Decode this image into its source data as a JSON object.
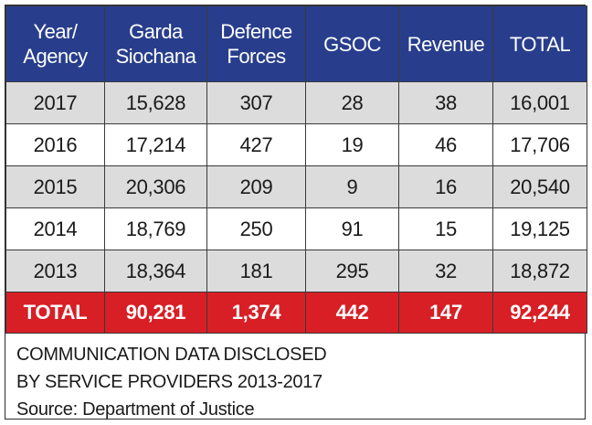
{
  "table": {
    "headers": [
      {
        "line1": "Year/",
        "line2": "Agency"
      },
      {
        "line1": "Garda",
        "line2": "Siochana"
      },
      {
        "line1": "Defence",
        "line2": "Forces"
      },
      {
        "line1": "GSOC",
        "line2": ""
      },
      {
        "line1": "Revenue",
        "line2": ""
      },
      {
        "line1": "TOTAL",
        "line2": ""
      }
    ],
    "rows": [
      [
        "2017",
        "15,628",
        "307",
        "28",
        "38",
        "16,001"
      ],
      [
        "2016",
        "17,214",
        "427",
        "19",
        "46",
        "17,706"
      ],
      [
        "2015",
        "20,306",
        "209",
        "9",
        "16",
        "20,540"
      ],
      [
        "2014",
        "18,769",
        "250",
        "91",
        "15",
        "19,125"
      ],
      [
        "2013",
        "18,364",
        "181",
        "295",
        "32",
        "18,872"
      ]
    ],
    "total_row": [
      "TOTAL",
      "90,281",
      "1,374",
      "442",
      "147",
      "92,244"
    ]
  },
  "caption": {
    "line1": "COMMUNICATION DATA DISCLOSED",
    "line2": "BY SERVICE PROVIDERS 2013-2017",
    "source": "Source: Department of Justice"
  },
  "colors": {
    "header_bg": "#283e8c",
    "total_bg": "#d81f26",
    "shaded_row_bg": "#dcdcdc"
  }
}
